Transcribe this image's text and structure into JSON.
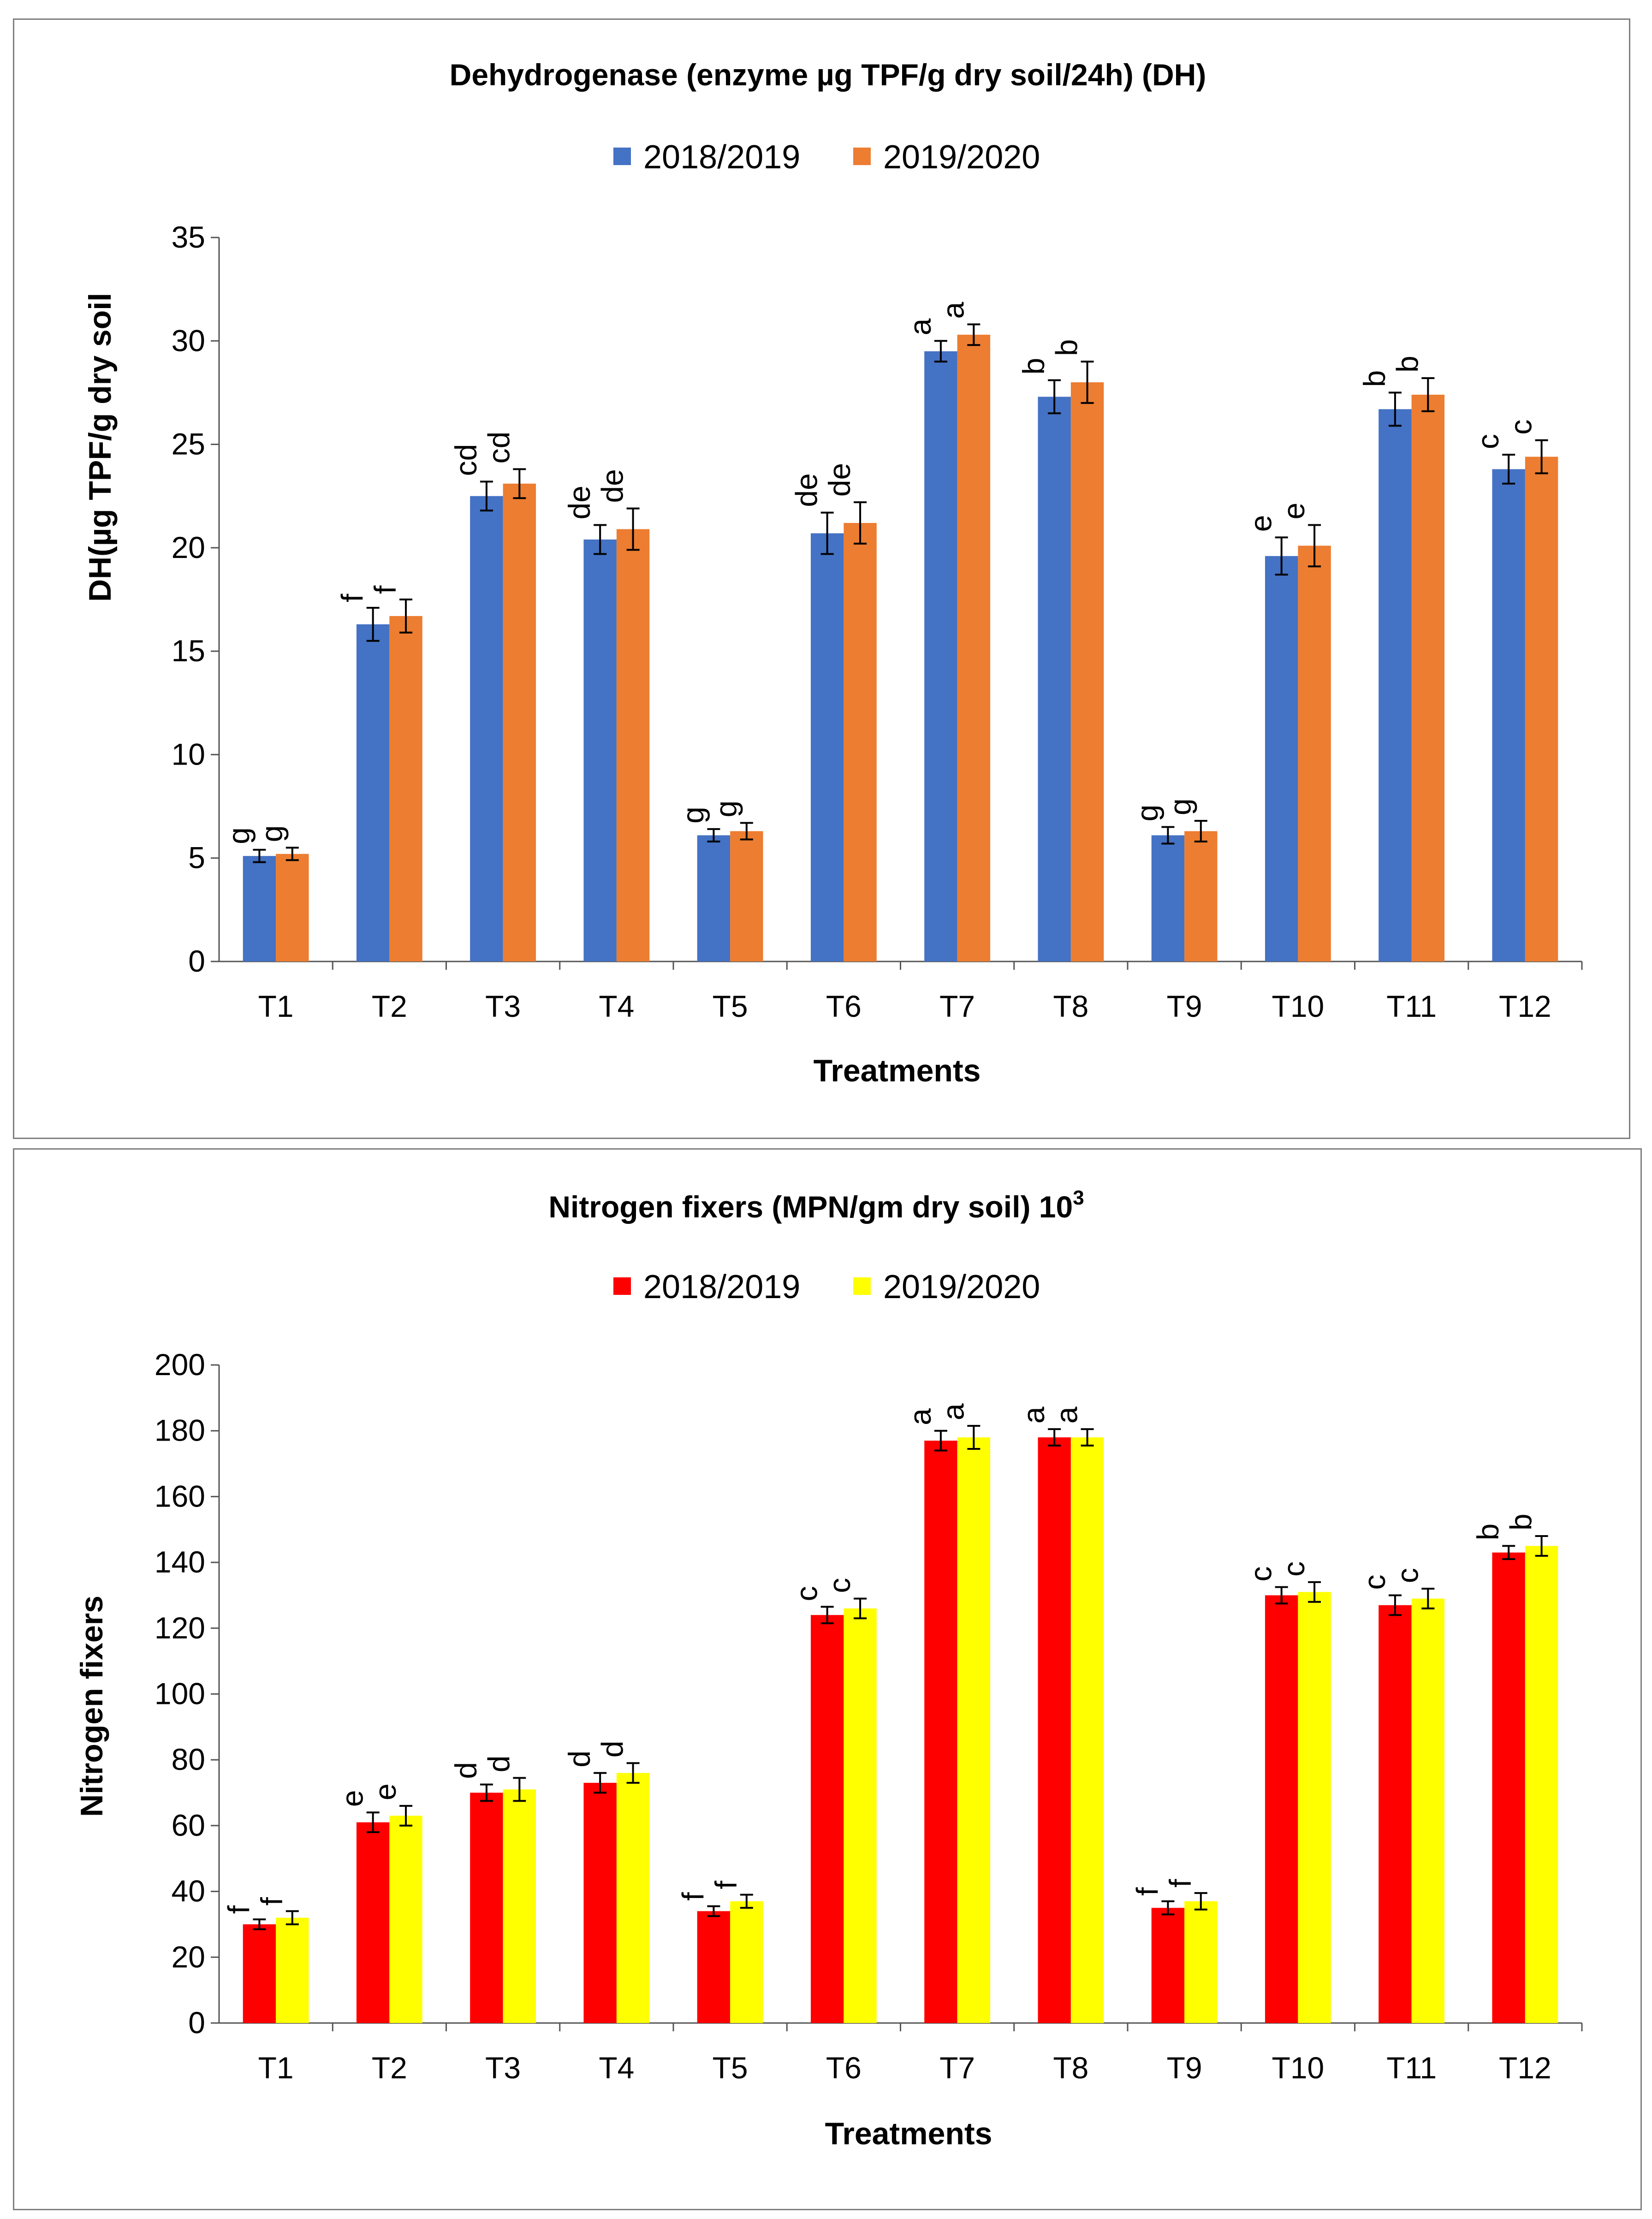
{
  "chart_data": [
    {
      "type": "bar",
      "title": "Dehydrogenase (enzyme µg TPF/g dry soil/24h) (DH)",
      "xlabel": "Treatments",
      "ylabel": "DH(µg TPF/g dry soil",
      "ylim": [
        0,
        35
      ],
      "yticks": [
        0,
        5,
        10,
        15,
        20,
        25,
        30,
        35
      ],
      "categories": [
        "T1",
        "T2",
        "T3",
        "T4",
        "T5",
        "T6",
        "T7",
        "T8",
        "T9",
        "T10",
        "T11",
        "T12"
      ],
      "legend_position": "top",
      "series": [
        {
          "name": "2018/2019",
          "color": "#4472C4",
          "values": [
            5.1,
            16.3,
            22.5,
            20.4,
            6.1,
            20.7,
            29.5,
            27.3,
            6.1,
            19.6,
            26.7,
            23.8
          ],
          "errors": [
            0.3,
            0.8,
            0.7,
            0.7,
            0.3,
            1.0,
            0.5,
            0.8,
            0.4,
            0.9,
            0.8,
            0.7
          ],
          "letters": [
            "g",
            "f",
            "cd",
            "de",
            "g",
            "de",
            "a",
            "b",
            "g",
            "e",
            "b",
            "c"
          ]
        },
        {
          "name": "2019/2020",
          "color": "#ED7D31",
          "values": [
            5.2,
            16.7,
            23.1,
            20.9,
            6.3,
            21.2,
            30.3,
            28.0,
            6.3,
            20.1,
            27.4,
            24.4
          ],
          "errors": [
            0.3,
            0.8,
            0.7,
            1.0,
            0.4,
            1.0,
            0.5,
            1.0,
            0.5,
            1.0,
            0.8,
            0.8
          ],
          "letters": [
            "g",
            "f",
            "cd",
            "de",
            "g",
            "de",
            "a",
            "b",
            "g",
            "e",
            "b",
            "c"
          ]
        }
      ]
    },
    {
      "type": "bar",
      "title": "Nitrogen fixers (MPN/gm dry soil) 10",
      "title_superscript": "3",
      "xlabel": "Treatments",
      "ylabel": "Nitrogen fixers",
      "ylim": [
        0,
        200
      ],
      "yticks": [
        0,
        20,
        40,
        60,
        80,
        100,
        120,
        140,
        160,
        180,
        200
      ],
      "categories": [
        "T1",
        "T2",
        "T3",
        "T4",
        "T5",
        "T6",
        "T7",
        "T8",
        "T9",
        "T10",
        "T11",
        "T12"
      ],
      "legend_position": "top",
      "series": [
        {
          "name": "2018/2019",
          "color": "#FF0000",
          "values": [
            30,
            61,
            70,
            73,
            34,
            124,
            177,
            178,
            35,
            130,
            127,
            143
          ],
          "errors": [
            1.5,
            3,
            2.5,
            3,
            1.5,
            2.5,
            3,
            2.5,
            2,
            2.5,
            3,
            2
          ],
          "letters": [
            "f",
            "e",
            "d",
            "d",
            "f",
            "c",
            "a",
            "a",
            "f",
            "c",
            "c",
            "b"
          ]
        },
        {
          "name": "2019/2020",
          "color": "#FFFF00",
          "values": [
            32,
            63,
            71,
            76,
            37,
            126,
            178,
            178,
            37,
            131,
            129,
            145
          ],
          "errors": [
            2,
            3,
            3.5,
            3,
            2,
            3,
            3.5,
            2.5,
            2.5,
            3,
            3,
            3
          ],
          "letters": [
            "f",
            "e",
            "d",
            "d",
            "f",
            "c",
            "a",
            "a",
            "f",
            "c",
            "c",
            "b"
          ]
        }
      ]
    }
  ]
}
